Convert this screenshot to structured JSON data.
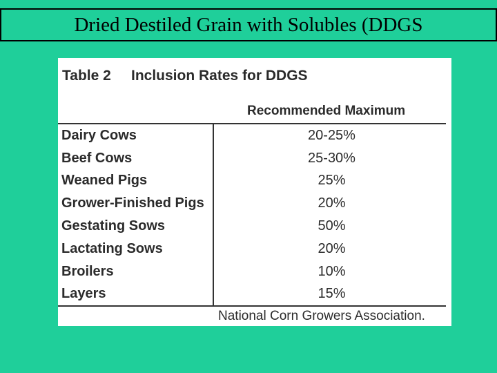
{
  "slide": {
    "title": "Dried Destiled Grain with Solubles (DDGS"
  },
  "table": {
    "caption_number": "Table 2",
    "caption_title": "Inclusion Rates for DDGS",
    "column_header": "Recommended Maximum",
    "rows": [
      {
        "animal": "Dairy Cows",
        "rate": "20-25%"
      },
      {
        "animal": "Beef Cows",
        "rate": "25-30%"
      },
      {
        "animal": "Weaned Pigs",
        "rate": "25%"
      },
      {
        "animal": "Grower-Finished Pigs",
        "rate": "20%"
      },
      {
        "animal": "Gestating Sows",
        "rate": "50%"
      },
      {
        "animal": "Lactating Sows",
        "rate": "20%"
      },
      {
        "animal": "Broilers",
        "rate": "10%"
      },
      {
        "animal": "Layers",
        "rate": "15%"
      }
    ],
    "source": "National Corn Growers Association."
  },
  "colors": {
    "background": "#1fcf9a",
    "table_background": "#ffffff",
    "text": "#2b2b2b"
  }
}
